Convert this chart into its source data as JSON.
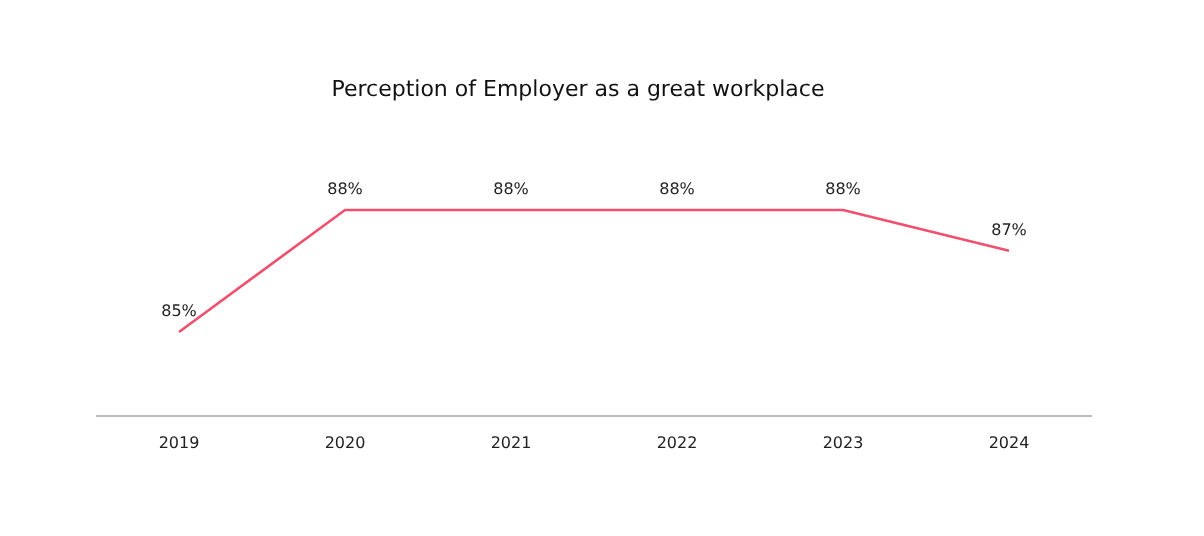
{
  "chart_data": {
    "type": "line",
    "title": "Perception of Employer as a great workplace",
    "categories": [
      "2019",
      "2020",
      "2021",
      "2022",
      "2023",
      "2024"
    ],
    "series": [
      {
        "color": "#f0506e",
        "values": [
          85,
          88,
          88,
          88,
          88,
          87
        ],
        "value_labels": [
          "85%",
          "88%",
          "88%",
          "88%",
          "88%",
          "87%"
        ]
      }
    ],
    "tick_labels": "x",
    "marker": "none",
    "line_style": "solid"
  }
}
